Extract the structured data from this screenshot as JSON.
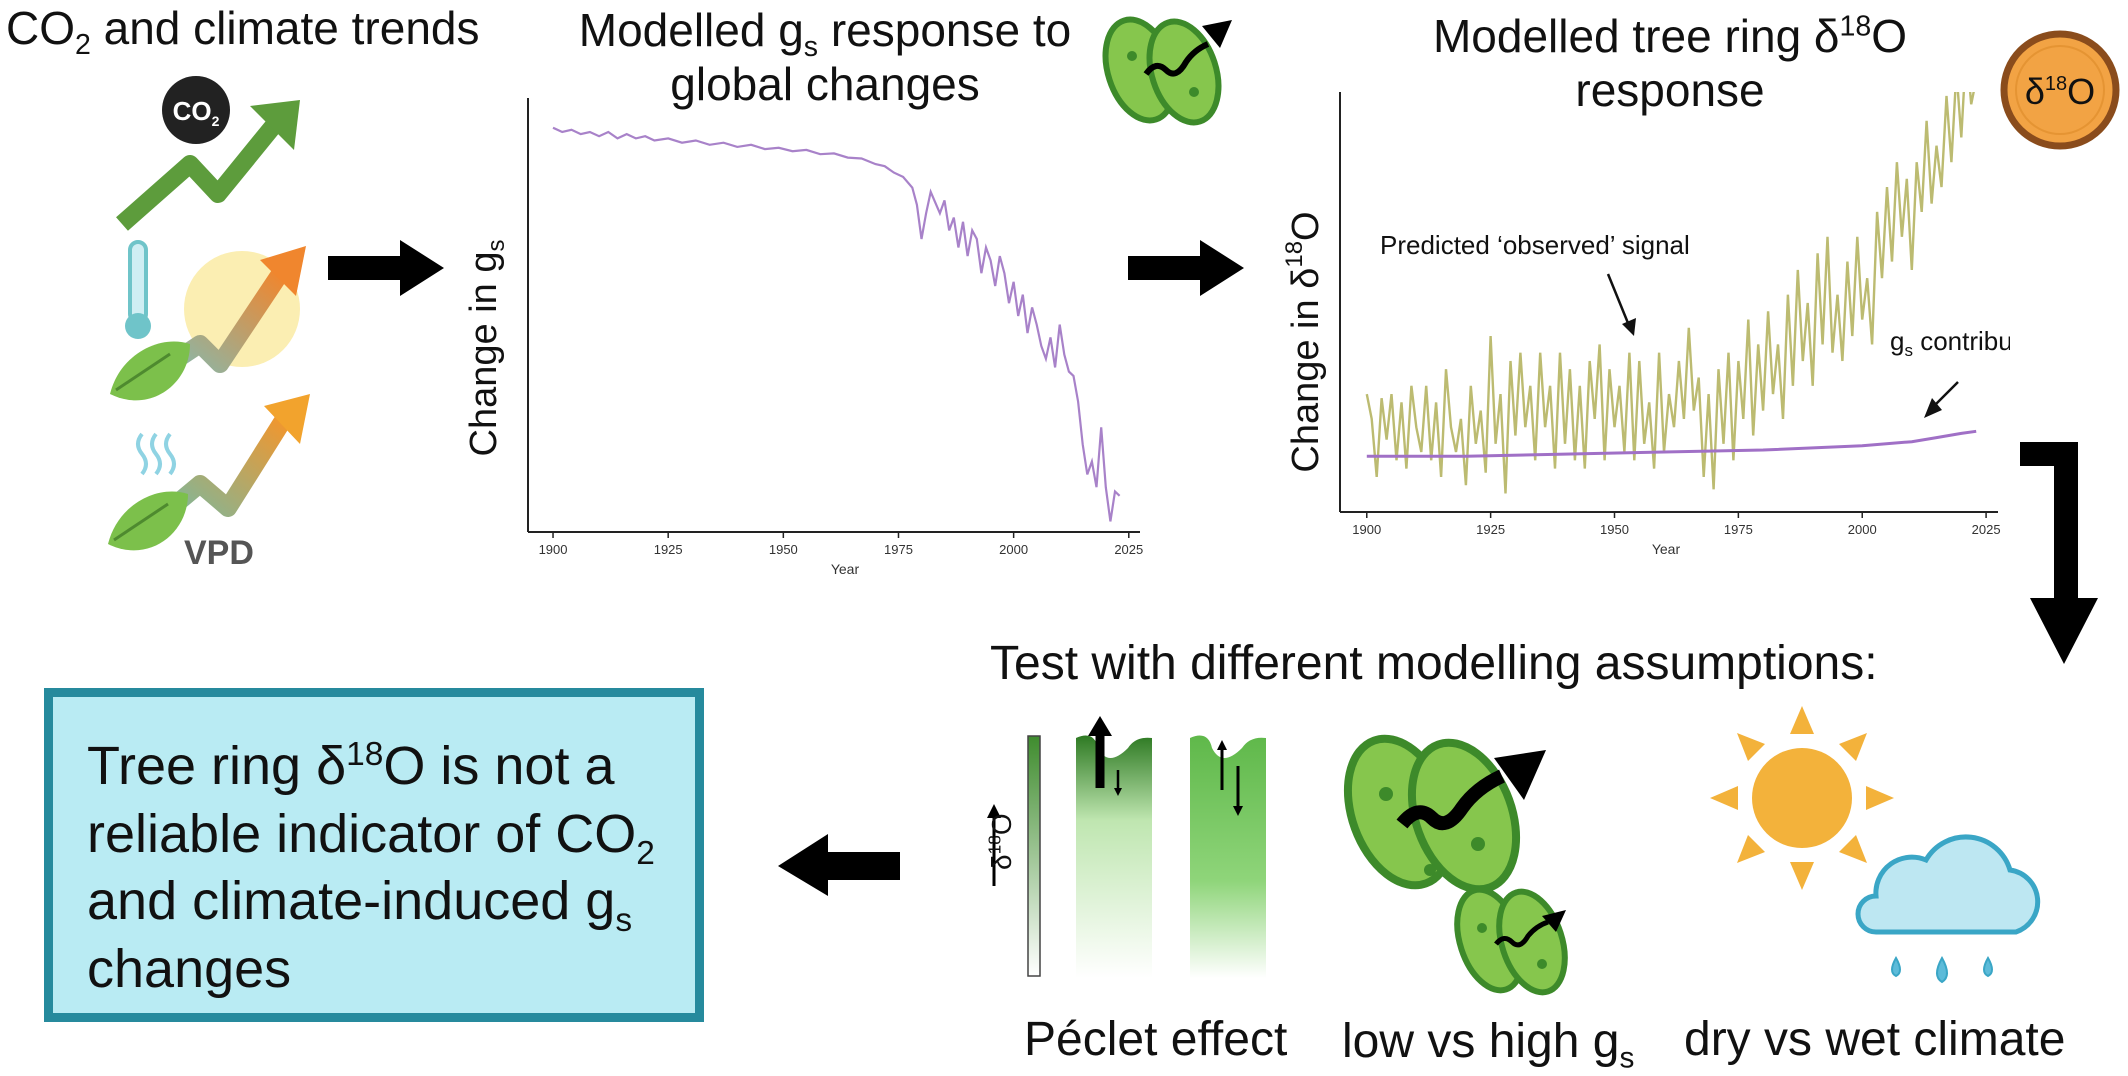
{
  "panel1": {
    "title_base": "CO",
    "title_sub": "2",
    "title_rest": " and climate trends",
    "co2_badge_base": "CO",
    "co2_badge_sub": "2",
    "vpd_label": "VPD"
  },
  "panel2": {
    "title_line1_base": "Modelled g",
    "title_line1_sub": "s",
    "title_line1_rest": " response to",
    "title_line2": "global changes"
  },
  "panel3": {
    "title_line1_base": "Modelled tree ring δ",
    "title_line1_sup": "18",
    "title_line1_rest": "O",
    "title_line2": "response",
    "badge_base": "δ",
    "badge_sup": "18",
    "badge_rest": "O"
  },
  "test_panel": {
    "title": "Test with different modelling assumptions:",
    "peclet_label": "Péclet effect",
    "peclet_axis_base": "δ",
    "peclet_axis_sup": "18",
    "peclet_axis_rest": "O",
    "gs_label_base": "low vs high g",
    "gs_label_sub": "s",
    "climate_label": "dry vs wet climate"
  },
  "conclusion": {
    "line1_base": "Tree ring δ",
    "line1_sup": "18",
    "line1_rest": "O is not a",
    "line2_base": "reliable indicator of CO",
    "line2_sub": "2",
    "line3_base": "and climate-induced g",
    "line3_sub": "s",
    "line4": "changes"
  },
  "chart_data": [
    {
      "type": "line",
      "xlabel": "Year",
      "ylabel_base": "Change in g",
      "ylabel_sub": "s",
      "xlim": [
        1895,
        2027
      ],
      "ylim": [
        0,
        1
      ],
      "xticks": [
        1900,
        1925,
        1950,
        1975,
        2000,
        2025
      ],
      "grid": false,
      "series": [
        {
          "color": "#a882c9",
          "points": [
            [
              1900,
              0.94
            ],
            [
              1902,
              0.93
            ],
            [
              1904,
              0.935
            ],
            [
              1906,
              0.925
            ],
            [
              1908,
              0.93
            ],
            [
              1910,
              0.92
            ],
            [
              1912,
              0.93
            ],
            [
              1914,
              0.915
            ],
            [
              1916,
              0.925
            ],
            [
              1918,
              0.915
            ],
            [
              1920,
              0.92
            ],
            [
              1922,
              0.91
            ],
            [
              1925,
              0.915
            ],
            [
              1928,
              0.905
            ],
            [
              1931,
              0.91
            ],
            [
              1934,
              0.9
            ],
            [
              1937,
              0.905
            ],
            [
              1940,
              0.895
            ],
            [
              1943,
              0.9
            ],
            [
              1946,
              0.89
            ],
            [
              1949,
              0.893
            ],
            [
              1952,
              0.885
            ],
            [
              1955,
              0.888
            ],
            [
              1958,
              0.878
            ],
            [
              1961,
              0.88
            ],
            [
              1964,
              0.87
            ],
            [
              1967,
              0.868
            ],
            [
              1970,
              0.855
            ],
            [
              1972,
              0.85
            ],
            [
              1974,
              0.835
            ],
            [
              1976,
              0.825
            ],
            [
              1978,
              0.8
            ],
            [
              1979,
              0.76
            ],
            [
              1980,
              0.68
            ],
            [
              1981,
              0.74
            ],
            [
              1982,
              0.79
            ],
            [
              1984,
              0.74
            ],
            [
              1985,
              0.77
            ],
            [
              1986,
              0.7
            ],
            [
              1987,
              0.73
            ],
            [
              1988,
              0.66
            ],
            [
              1989,
              0.72
            ],
            [
              1990,
              0.64
            ],
            [
              1991,
              0.7
            ],
            [
              1992,
              0.68
            ],
            [
              1993,
              0.6
            ],
            [
              1994,
              0.66
            ],
            [
              1995,
              0.63
            ],
            [
              1996,
              0.57
            ],
            [
              1997,
              0.64
            ],
            [
              1998,
              0.6
            ],
            [
              1999,
              0.53
            ],
            [
              2000,
              0.58
            ],
            [
              2001,
              0.5
            ],
            [
              2002,
              0.55
            ],
            [
              2003,
              0.46
            ],
            [
              2004,
              0.52
            ],
            [
              2005,
              0.48
            ],
            [
              2006,
              0.43
            ],
            [
              2007,
              0.4
            ],
            [
              2008,
              0.45
            ],
            [
              2009,
              0.38
            ],
            [
              2010,
              0.48
            ],
            [
              2011,
              0.41
            ],
            [
              2012,
              0.37
            ],
            [
              2013,
              0.36
            ],
            [
              2014,
              0.3
            ],
            [
              2015,
              0.2
            ],
            [
              2016,
              0.13
            ],
            [
              2017,
              0.16
            ],
            [
              2018,
              0.1
            ],
            [
              2019,
              0.24
            ],
            [
              2020,
              0.1
            ],
            [
              2021,
              0.02
            ],
            [
              2022,
              0.09
            ],
            [
              2023,
              0.08
            ]
          ]
        }
      ]
    },
    {
      "type": "line",
      "xlabel": "Year",
      "ylabel_base": "Change in δ",
      "ylabel_sup": "18",
      "ylabel_rest": "O",
      "xlim": [
        1895,
        2027
      ],
      "ylim": [
        0,
        1
      ],
      "xticks": [
        1900,
        1925,
        1950,
        1975,
        2000,
        2025
      ],
      "grid": false,
      "annotations": [
        {
          "text": "Predicted ‘observed’ signal",
          "target_series": 0
        },
        {
          "text_base": "g",
          "text_sub": "s",
          "text_rest": " contributions",
          "target_series": 1
        }
      ],
      "series": [
        {
          "color": "#bcbb71",
          "points": [
            [
              1900,
              0.28
            ],
            [
              1901,
              0.22
            ],
            [
              1902,
              0.08
            ],
            [
              1903,
              0.27
            ],
            [
              1904,
              0.17
            ],
            [
              1905,
              0.28
            ],
            [
              1906,
              0.12
            ],
            [
              1907,
              0.26
            ],
            [
              1908,
              0.1
            ],
            [
              1909,
              0.3
            ],
            [
              1910,
              0.2
            ],
            [
              1911,
              0.14
            ],
            [
              1912,
              0.3
            ],
            [
              1913,
              0.12
            ],
            [
              1914,
              0.26
            ],
            [
              1915,
              0.08
            ],
            [
              1916,
              0.34
            ],
            [
              1917,
              0.2
            ],
            [
              1918,
              0.14
            ],
            [
              1919,
              0.22
            ],
            [
              1920,
              0.06
            ],
            [
              1921,
              0.3
            ],
            [
              1922,
              0.16
            ],
            [
              1923,
              0.24
            ],
            [
              1924,
              0.09
            ],
            [
              1925,
              0.42
            ],
            [
              1926,
              0.16
            ],
            [
              1927,
              0.28
            ],
            [
              1928,
              0.04
            ],
            [
              1929,
              0.36
            ],
            [
              1930,
              0.18
            ],
            [
              1931,
              0.38
            ],
            [
              1932,
              0.2
            ],
            [
              1933,
              0.3
            ],
            [
              1934,
              0.12
            ],
            [
              1935,
              0.38
            ],
            [
              1936,
              0.2
            ],
            [
              1937,
              0.3
            ],
            [
              1938,
              0.1
            ],
            [
              1939,
              0.38
            ],
            [
              1940,
              0.16
            ],
            [
              1941,
              0.34
            ],
            [
              1942,
              0.12
            ],
            [
              1943,
              0.3
            ],
            [
              1944,
              0.1
            ],
            [
              1945,
              0.36
            ],
            [
              1946,
              0.22
            ],
            [
              1947,
              0.4
            ],
            [
              1948,
              0.12
            ],
            [
              1949,
              0.34
            ],
            [
              1950,
              0.2
            ],
            [
              1951,
              0.3
            ],
            [
              1952,
              0.14
            ],
            [
              1953,
              0.38
            ],
            [
              1954,
              0.12
            ],
            [
              1955,
              0.36
            ],
            [
              1956,
              0.16
            ],
            [
              1957,
              0.26
            ],
            [
              1958,
              0.1
            ],
            [
              1959,
              0.38
            ],
            [
              1960,
              0.14
            ],
            [
              1961,
              0.28
            ],
            [
              1962,
              0.2
            ],
            [
              1963,
              0.36
            ],
            [
              1964,
              0.22
            ],
            [
              1965,
              0.44
            ],
            [
              1966,
              0.24
            ],
            [
              1967,
              0.32
            ],
            [
              1968,
              0.08
            ],
            [
              1969,
              0.28
            ],
            [
              1970,
              0.05
            ],
            [
              1971,
              0.34
            ],
            [
              1972,
              0.16
            ],
            [
              1973,
              0.38
            ],
            [
              1974,
              0.12
            ],
            [
              1975,
              0.36
            ],
            [
              1976,
              0.22
            ],
            [
              1977,
              0.46
            ],
            [
              1978,
              0.18
            ],
            [
              1979,
              0.4
            ],
            [
              1980,
              0.24
            ],
            [
              1981,
              0.48
            ],
            [
              1982,
              0.28
            ],
            [
              1983,
              0.4
            ],
            [
              1984,
              0.22
            ],
            [
              1985,
              0.52
            ],
            [
              1986,
              0.3
            ],
            [
              1987,
              0.58
            ],
            [
              1988,
              0.36
            ],
            [
              1989,
              0.5
            ],
            [
              1990,
              0.3
            ],
            [
              1991,
              0.62
            ],
            [
              1992,
              0.4
            ],
            [
              1993,
              0.66
            ],
            [
              1994,
              0.38
            ],
            [
              1995,
              0.52
            ],
            [
              1996,
              0.36
            ],
            [
              1997,
              0.6
            ],
            [
              1998,
              0.42
            ],
            [
              1999,
              0.66
            ],
            [
              2000,
              0.46
            ],
            [
              2001,
              0.56
            ],
            [
              2002,
              0.4
            ],
            [
              2003,
              0.72
            ],
            [
              2004,
              0.56
            ],
            [
              2005,
              0.78
            ],
            [
              2006,
              0.6
            ],
            [
              2007,
              0.84
            ],
            [
              2008,
              0.66
            ],
            [
              2009,
              0.8
            ],
            [
              2010,
              0.58
            ],
            [
              2011,
              0.84
            ],
            [
              2012,
              0.72
            ],
            [
              2013,
              0.94
            ],
            [
              2014,
              0.74
            ],
            [
              2015,
              0.88
            ],
            [
              2016,
              0.78
            ],
            [
              2017,
              1.0
            ],
            [
              2018,
              0.84
            ],
            [
              2019,
              1.06
            ],
            [
              2020,
              0.9
            ],
            [
              2021,
              1.12
            ],
            [
              2022,
              0.98
            ],
            [
              2023,
              1.04
            ]
          ]
        },
        {
          "color": "#a070c6",
          "points": [
            [
              1900,
              0.13
            ],
            [
              1920,
              0.13
            ],
            [
              1940,
              0.135
            ],
            [
              1960,
              0.14
            ],
            [
              1980,
              0.145
            ],
            [
              2000,
              0.155
            ],
            [
              2010,
              0.165
            ],
            [
              2015,
              0.175
            ],
            [
              2020,
              0.185
            ],
            [
              2023,
              0.19
            ]
          ]
        }
      ]
    }
  ]
}
